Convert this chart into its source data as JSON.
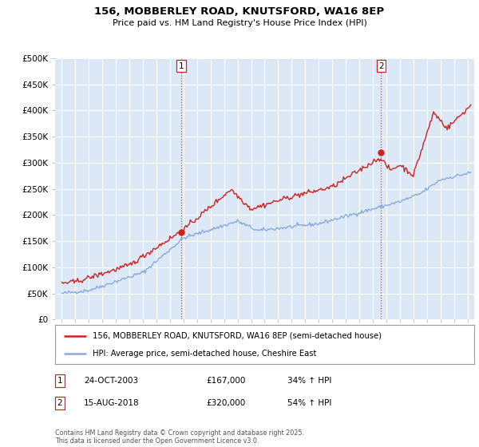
{
  "title_line1": "156, MOBBERLEY ROAD, KNUTSFORD, WA16 8EP",
  "title_line2": "Price paid vs. HM Land Registry's House Price Index (HPI)",
  "bg_color": "#ffffff",
  "plot_bg_color": "#dce8f5",
  "grid_color": "#ffffff",
  "red_color": "#cc2222",
  "blue_color": "#88aadd",
  "marker1_year": 2003.82,
  "marker1_value": 167000,
  "marker2_year": 2018.62,
  "marker2_value": 320000,
  "ylim_max": 500000,
  "ylim_min": 0,
  "xlim_min": 1994.5,
  "xlim_max": 2025.5,
  "legend_items": [
    "156, MOBBERLEY ROAD, KNUTSFORD, WA16 8EP (semi-detached house)",
    "HPI: Average price, semi-detached house, Cheshire East"
  ],
  "annotation1_label": "1",
  "annotation1_date": "24-OCT-2003",
  "annotation1_price": "£167,000",
  "annotation1_hpi": "34% ↑ HPI",
  "annotation2_label": "2",
  "annotation2_date": "15-AUG-2018",
  "annotation2_price": "£320,000",
  "annotation2_hpi": "54% ↑ HPI",
  "footer": "Contains HM Land Registry data © Crown copyright and database right 2025.\nThis data is licensed under the Open Government Licence v3.0."
}
